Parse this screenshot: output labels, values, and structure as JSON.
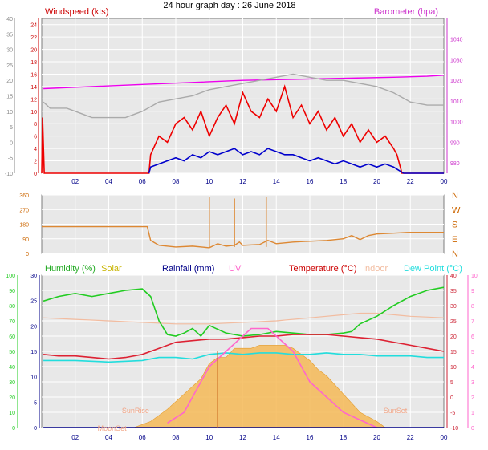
{
  "page_title": "24 hour graph day : 26 June 2018",
  "x_tick_labels": [
    "02",
    "04",
    "06",
    "08",
    "10",
    "12",
    "14",
    "16",
    "18",
    "20",
    "22",
    "00"
  ],
  "chart_data": [
    {
      "type": "line",
      "panel": "wind-barometer",
      "title": "",
      "left_axis": {
        "label": "Windspeed (kts)",
        "range": [
          0,
          25
        ],
        "ticks": [
          0,
          2,
          4,
          6,
          8,
          10,
          12,
          14,
          16,
          18,
          20,
          22,
          24
        ],
        "tick_labels": [
          "0",
          "2",
          "4",
          "6",
          "8",
          "10",
          "12",
          "14",
          "16",
          "18",
          "20",
          "22",
          "24"
        ]
      },
      "outer_left_axis": {
        "label": "",
        "range": [
          -10,
          40
        ],
        "ticks": [
          -10,
          -5,
          0,
          5,
          10,
          15,
          20,
          25,
          30,
          35,
          40
        ],
        "tick_labels": [
          "-10",
          "-5",
          "0",
          "5",
          "10",
          "15",
          "20",
          "25",
          "30",
          "35",
          "40"
        ]
      },
      "right_axis": {
        "label": "Barometer (hpa)",
        "range": [
          975,
          1050
        ],
        "ticks": [
          980,
          990,
          1000,
          1010,
          1020,
          1030,
          1040
        ],
        "tick_labels": [
          "980",
          "990",
          "1000",
          "1010",
          "1020",
          "1030",
          "1040"
        ]
      },
      "series": [
        {
          "name": "Barometer (hpa)",
          "color": "#ee00ee",
          "axis": "right",
          "x": [
            0.1,
            3,
            6,
            9,
            12,
            15,
            18,
            21,
            23,
            24
          ],
          "y": [
            1016,
            1017,
            1018,
            1019,
            1020,
            1020.5,
            1021,
            1021.5,
            1022,
            1022.5
          ]
        },
        {
          "name": "",
          "color": "#aaaaaa",
          "axis": "outer",
          "x": [
            0.1,
            0.5,
            1.5,
            2.5,
            3,
            4,
            5,
            5.5,
            6,
            7,
            8,
            9,
            10,
            11,
            12,
            13,
            14,
            15,
            16,
            17,
            18,
            19,
            20,
            20.5,
            21,
            22,
            23,
            24
          ],
          "y": [
            13,
            11,
            11,
            9,
            8,
            8,
            8,
            9,
            10,
            13,
            14,
            15,
            17,
            18,
            19,
            20,
            21,
            22,
            21,
            20,
            20,
            19,
            18,
            17,
            16,
            13,
            12,
            12
          ]
        },
        {
          "name": "",
          "color": "#ee0000",
          "axis": "left",
          "x": [
            0,
            0.05,
            0.15,
            6.4,
            6.5,
            7,
            7.5,
            8,
            8.5,
            9,
            9.5,
            10,
            10.5,
            11,
            11.5,
            12,
            12.5,
            13,
            13.5,
            14,
            14.5,
            15,
            15.5,
            16,
            16.5,
            17,
            17.5,
            18,
            18.5,
            19,
            19.5,
            20,
            20.5,
            21,
            21.2,
            21.5,
            22,
            24
          ],
          "y": [
            0,
            9,
            0,
            0,
            3,
            6,
            5,
            8,
            9,
            7,
            10,
            6,
            9,
            11,
            8,
            13,
            10,
            9,
            12,
            10,
            14,
            9,
            11,
            8,
            10,
            7,
            9,
            6,
            8,
            5,
            7,
            5,
            6,
            4,
            3,
            0,
            0,
            0
          ]
        },
        {
          "name": "",
          "color": "#0000cc",
          "axis": "left",
          "x": [
            6.4,
            6.5,
            7,
            7.5,
            8,
            8.5,
            9,
            9.5,
            10,
            10.5,
            11,
            11.5,
            12,
            12.5,
            13,
            13.5,
            14,
            14.5,
            15,
            15.5,
            16,
            16.5,
            17,
            17.5,
            18,
            18.5,
            19,
            19.5,
            20,
            20.5,
            21,
            21.3,
            21.6,
            24
          ],
          "y": [
            0,
            1,
            1.5,
            2,
            2.5,
            2,
            3,
            2.5,
            3.5,
            3,
            3.5,
            4,
            3,
            3.5,
            3,
            4,
            3.5,
            3,
            3,
            2.5,
            2,
            2.5,
            2,
            1.5,
            2,
            1.5,
            1,
            1.5,
            1,
            1.5,
            1,
            0.5,
            0,
            0
          ]
        }
      ]
    },
    {
      "type": "line",
      "panel": "wind-direction",
      "title": "",
      "left_axis": {
        "label": "",
        "range": [
          0,
          360
        ],
        "ticks": [
          0,
          90,
          180,
          270,
          360
        ],
        "tick_labels": [
          "0",
          "90",
          "180",
          "270",
          "360"
        ]
      },
      "right_axis": {
        "label": "",
        "range": [
          0,
          360
        ],
        "ticks": [
          0,
          90,
          180,
          270,
          360
        ],
        "tick_labels": [
          "N",
          "E",
          "S",
          "W",
          "N"
        ]
      },
      "series": [
        {
          "name": "",
          "color": "#dd8833",
          "x": [
            0,
            3,
            6.3,
            6.5,
            7,
            8,
            9,
            10,
            10.5,
            11,
            11.5,
            11.8,
            12,
            13,
            13.5,
            14,
            15,
            16,
            17,
            18,
            18.5,
            19,
            19.5,
            20,
            21,
            22,
            24
          ],
          "y": [
            165,
            165,
            165,
            80,
            50,
            40,
            45,
            35,
            60,
            45,
            50,
            70,
            50,
            55,
            80,
            60,
            70,
            75,
            80,
            90,
            110,
            85,
            110,
            120,
            125,
            130,
            130
          ]
        }
      ]
    },
    {
      "type": "line",
      "panel": "humidity-temperature",
      "title": "",
      "legend": [
        "Humidity (%)",
        "Solar",
        "Rainfall (mm)",
        "UV",
        "Temperature (°C)",
        "Indoor",
        "Dew Point (°C)"
      ],
      "axes": {
        "humidity": {
          "label": "Humidity (%)",
          "range": [
            0,
            100
          ],
          "ticks": [
            0,
            10,
            20,
            30,
            40,
            50,
            60,
            70,
            80,
            90,
            100
          ],
          "tick_labels": [
            "0",
            "10",
            "20",
            "30",
            "40",
            "50",
            "60",
            "70",
            "80",
            "90",
            "100"
          ]
        },
        "rainfall": {
          "label": "Rainfall (mm)",
          "range": [
            0,
            30
          ],
          "ticks": [
            0,
            5,
            10,
            15,
            20,
            25,
            30
          ],
          "tick_labels": [
            "0",
            "5",
            "10",
            "15",
            "20",
            "25",
            "30"
          ]
        },
        "temperature": {
          "label": "Temperature (°C)",
          "range": [
            -10,
            40
          ],
          "ticks": [
            -10,
            -5,
            0,
            5,
            10,
            15,
            20,
            25,
            30,
            35,
            40
          ],
          "tick_labels": [
            "-10",
            "-5",
            "0",
            "5",
            "10",
            "15",
            "20",
            "25",
            "30",
            "35",
            "40"
          ]
        },
        "uv": {
          "label": "UV",
          "range": [
            0,
            10
          ],
          "ticks": [
            0,
            1,
            2,
            3,
            4,
            5,
            6,
            7,
            8,
            9,
            10
          ],
          "tick_labels": [
            "0",
            "1",
            "2",
            "3",
            "4",
            "5",
            "6",
            "7",
            "8",
            "9",
            "10"
          ]
        }
      },
      "annotations": [
        "SunRise",
        "SunSet",
        "MoonSet"
      ],
      "series": [
        {
          "name": "Solar",
          "color": "#f5b856",
          "axis": "temperature",
          "x": [
            5.5,
            6.5,
            7.5,
            8.5,
            9.5,
            10,
            10.5,
            11,
            11.5,
            12,
            12.5,
            13,
            13.5,
            14,
            14.5,
            15,
            15.5,
            16,
            16.5,
            17,
            18,
            19,
            20,
            20.5
          ],
          "y": [
            -10,
            -8,
            -4,
            1,
            6,
            11,
            13,
            13,
            16,
            16,
            16,
            17,
            17,
            17,
            17,
            16,
            14,
            12,
            9,
            7,
            1,
            -5,
            -8,
            -10
          ]
        },
        {
          "name": "Indoor",
          "color": "#f2bca0",
          "axis": "temperature",
          "x": [
            0.1,
            2,
            4,
            6,
            8,
            10,
            12,
            14,
            16,
            18,
            19,
            20,
            21,
            22,
            24
          ],
          "y": [
            26,
            25.5,
            25,
            24.5,
            24,
            24,
            24.5,
            25,
            26,
            27,
            27.5,
            27.5,
            27,
            26.5,
            26
          ]
        },
        {
          "name": "Humidity (%)",
          "color": "#22cc22",
          "axis": "humidity",
          "x": [
            0.1,
            1,
            2,
            3,
            4,
            5,
            6,
            6.5,
            7,
            7.5,
            8,
            8.5,
            9,
            9.5,
            10,
            11,
            12,
            13,
            14,
            15,
            16,
            17,
            18,
            18.5,
            19,
            20,
            21,
            22,
            23,
            24
          ],
          "y": [
            83,
            86,
            88,
            86,
            88,
            90,
            91,
            86,
            70,
            61,
            60,
            62,
            65,
            60,
            67,
            62,
            60,
            61,
            63,
            62,
            61,
            61,
            62,
            63,
            68,
            73,
            80,
            86,
            90,
            92
          ]
        },
        {
          "name": "Temperature (°C)",
          "color": "#dd2233",
          "axis": "temperature",
          "x": [
            0.1,
            1,
            2,
            3,
            4,
            5,
            6,
            7,
            8,
            9,
            10,
            11,
            12,
            13,
            14,
            15,
            16,
            17,
            18,
            19,
            20,
            21,
            22,
            23,
            24
          ],
          "y": [
            14,
            13.5,
            13.5,
            13,
            12.5,
            13,
            14,
            16,
            18,
            18.5,
            19,
            19,
            19.5,
            20,
            20,
            20.5,
            20.5,
            20.5,
            20,
            19.5,
            19,
            18,
            17,
            16,
            15
          ]
        },
        {
          "name": "Dew Point (°C)",
          "color": "#22dddd",
          "axis": "temperature",
          "x": [
            0.1,
            2,
            4,
            6,
            7,
            8,
            9,
            10,
            11,
            12,
            13,
            14,
            15,
            16,
            17,
            18,
            19,
            20,
            21,
            22,
            23,
            24
          ],
          "y": [
            12,
            12,
            11.5,
            12,
            13,
            13,
            12.5,
            14,
            14.5,
            14,
            14.5,
            14.5,
            14,
            14,
            14.5,
            14,
            14,
            13.5,
            13.5,
            13.5,
            13,
            13
          ]
        },
        {
          "name": "UV",
          "color": "#ff66cc",
          "axis": "uv",
          "x": [
            7.5,
            8.5,
            9,
            9.5,
            10,
            10.5,
            11,
            11.5,
            12,
            12.5,
            13,
            13.5,
            14,
            14.5,
            15,
            15.5,
            16,
            16.5,
            17,
            18,
            19,
            20
          ],
          "y": [
            0.3,
            1,
            2,
            3,
            4,
            4.5,
            5,
            5.5,
            6,
            6.5,
            6.5,
            6.5,
            6,
            5.5,
            5,
            4,
            3,
            2.5,
            2,
            1,
            0.5,
            0
          ]
        },
        {
          "name": "Rainfall (mm)",
          "color": "#000088",
          "axis": "rainfall",
          "x": [
            0.1,
            24
          ],
          "y": [
            0,
            0
          ]
        }
      ]
    }
  ]
}
